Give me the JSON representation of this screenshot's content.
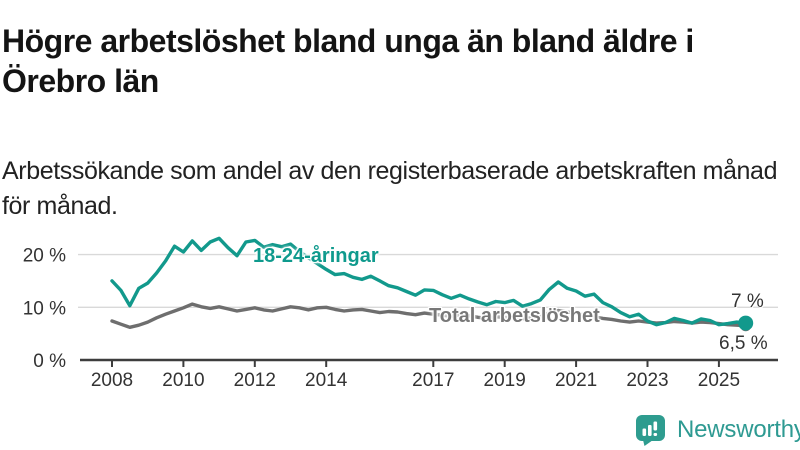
{
  "header": {
    "title_line1": "Högre arbetslöshet bland unga än bland äldre i",
    "title_line2": "Örebro län",
    "subtitle_line1": "Arbetssökande som andel av den registerbaserade arbetskraften månad",
    "subtitle_line2": "för månad."
  },
  "chart_data": {
    "type": "line",
    "x_start": 2008.0,
    "x_step": 0.25,
    "x_end": 2025.75,
    "ylim": [
      0,
      24
    ],
    "grid": "horizontal",
    "legend": "inline-labels",
    "yticks": [
      {
        "value": 0,
        "label": "0 %"
      },
      {
        "value": 10,
        "label": "10 %"
      },
      {
        "value": 20,
        "label": "20 %"
      }
    ],
    "xticks": [
      {
        "value": 2008,
        "label": "2008"
      },
      {
        "value": 2010,
        "label": "2010"
      },
      {
        "value": 2012,
        "label": "2012"
      },
      {
        "value": 2014,
        "label": "2014"
      },
      {
        "value": 2017,
        "label": "2017"
      },
      {
        "value": 2019,
        "label": "2019"
      },
      {
        "value": 2021,
        "label": "2021"
      },
      {
        "value": 2023,
        "label": "2023"
      },
      {
        "value": 2025,
        "label": "2025"
      }
    ],
    "series": [
      {
        "name": "Total arbetslöshet",
        "color": "#6e6e6e",
        "draw_order": 1,
        "end_dot_radius": 5.5,
        "end_label": "6,5 %",
        "values": [
          7.4,
          6.8,
          6.2,
          6.6,
          7.2,
          8.0,
          8.7,
          9.3,
          9.9,
          10.6,
          10.1,
          9.8,
          10.1,
          9.7,
          9.3,
          9.6,
          9.9,
          9.5,
          9.3,
          9.7,
          10.1,
          9.9,
          9.5,
          9.9,
          10.0,
          9.6,
          9.3,
          9.5,
          9.6,
          9.3,
          9.0,
          9.2,
          9.1,
          8.8,
          8.6,
          8.9,
          8.7,
          8.5,
          8.3,
          8.6,
          8.4,
          8.1,
          7.9,
          8.2,
          8.1,
          7.9,
          7.8,
          8.0,
          8.2,
          9.0,
          9.4,
          9.1,
          8.9,
          8.5,
          8.2,
          7.9,
          7.7,
          7.4,
          7.2,
          7.4,
          7.2,
          7.0,
          7.1,
          7.3,
          7.2,
          7.0,
          7.2,
          7.1,
          6.9,
          6.7,
          6.6,
          6.5
        ]
      },
      {
        "name": "18-24-åringar",
        "color": "#12998c",
        "draw_order": 2,
        "end_dot_radius": 7.5,
        "end_label": "7 %",
        "values": [
          15.0,
          13.2,
          10.3,
          13.6,
          14.6,
          16.5,
          18.8,
          21.6,
          20.5,
          22.6,
          20.8,
          22.4,
          23.1,
          21.3,
          19.8,
          22.4,
          22.7,
          21.4,
          21.9,
          21.5,
          22.0,
          20.6,
          19.4,
          18.3,
          17.2,
          16.2,
          16.4,
          15.7,
          15.3,
          15.9,
          15.0,
          14.1,
          13.7,
          13.0,
          12.3,
          13.3,
          13.2,
          12.4,
          11.7,
          12.3,
          11.6,
          11.0,
          10.5,
          11.1,
          10.9,
          11.3,
          10.2,
          10.7,
          11.4,
          13.4,
          14.8,
          13.6,
          13.1,
          12.1,
          12.5,
          10.9,
          10.1,
          9.0,
          8.2,
          8.7,
          7.4,
          6.7,
          7.1,
          7.9,
          7.5,
          7.0,
          7.8,
          7.5,
          6.7,
          6.9,
          7.2,
          7.0
        ]
      }
    ],
    "colors": {
      "grid": "#d9d9d9",
      "axis": "#3d3d3d",
      "axis_text": "#333333"
    }
  },
  "logo": {
    "text": "Newsworthy",
    "icon": "newsworthy-speech-bubble-bar-chart-icon",
    "color": "#2e9c8f"
  }
}
